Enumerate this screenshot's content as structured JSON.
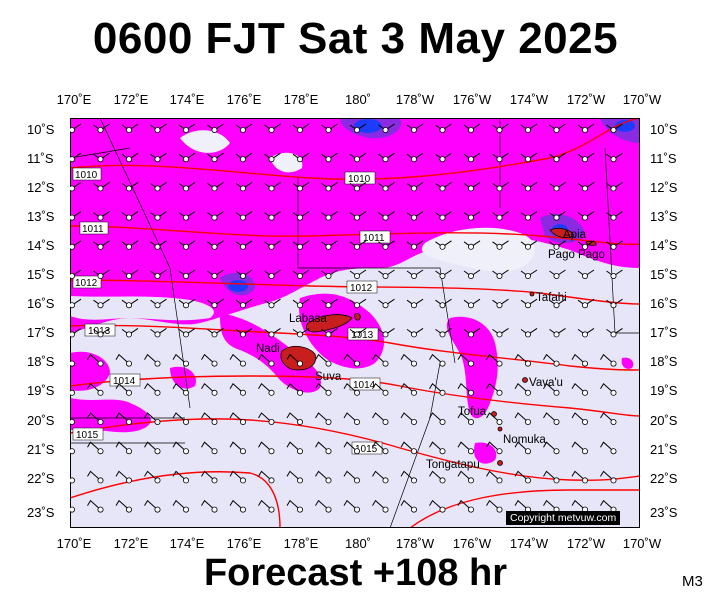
{
  "title": "0600 FJT Sat 3 May 2025",
  "footer": "Forecast +108 hr",
  "model_tag": "M3",
  "copyright": "Copyright metvuw.com",
  "lon_labels": [
    "170˚E",
    "172˚E",
    "174˚E",
    "176˚E",
    "178˚E",
    "180˚",
    "178˚W",
    "176˚W",
    "174˚W",
    "172˚W",
    "170˚W"
  ],
  "lat_labels": [
    "10˚S",
    "11˚S",
    "12˚S",
    "13˚S",
    "14˚S",
    "15˚S",
    "16˚S",
    "17˚S",
    "18˚S",
    "19˚S",
    "20˚S",
    "21˚S",
    "22˚S",
    "23˚S"
  ],
  "isobar_labels": [
    "1010",
    "1010",
    "1011",
    "1011",
    "1012",
    "1012",
    "1013",
    "1013",
    "1014",
    "1014",
    "1015",
    "1015"
  ],
  "places": [
    "Apia",
    "Pago Pago",
    "Tafahi",
    "Labasa",
    "Nadi",
    "Suva",
    "Vava'u",
    "Tofua",
    "Nomuka",
    "Tongatapu"
  ],
  "colors": {
    "rain_heavy": "#ff00ff",
    "rain_very_heavy": "#5a2ee0",
    "rain_extreme": "#1e3cff",
    "dry": "#e6e6f8",
    "isobar": "#ff0000",
    "land": "#c81e1e"
  }
}
